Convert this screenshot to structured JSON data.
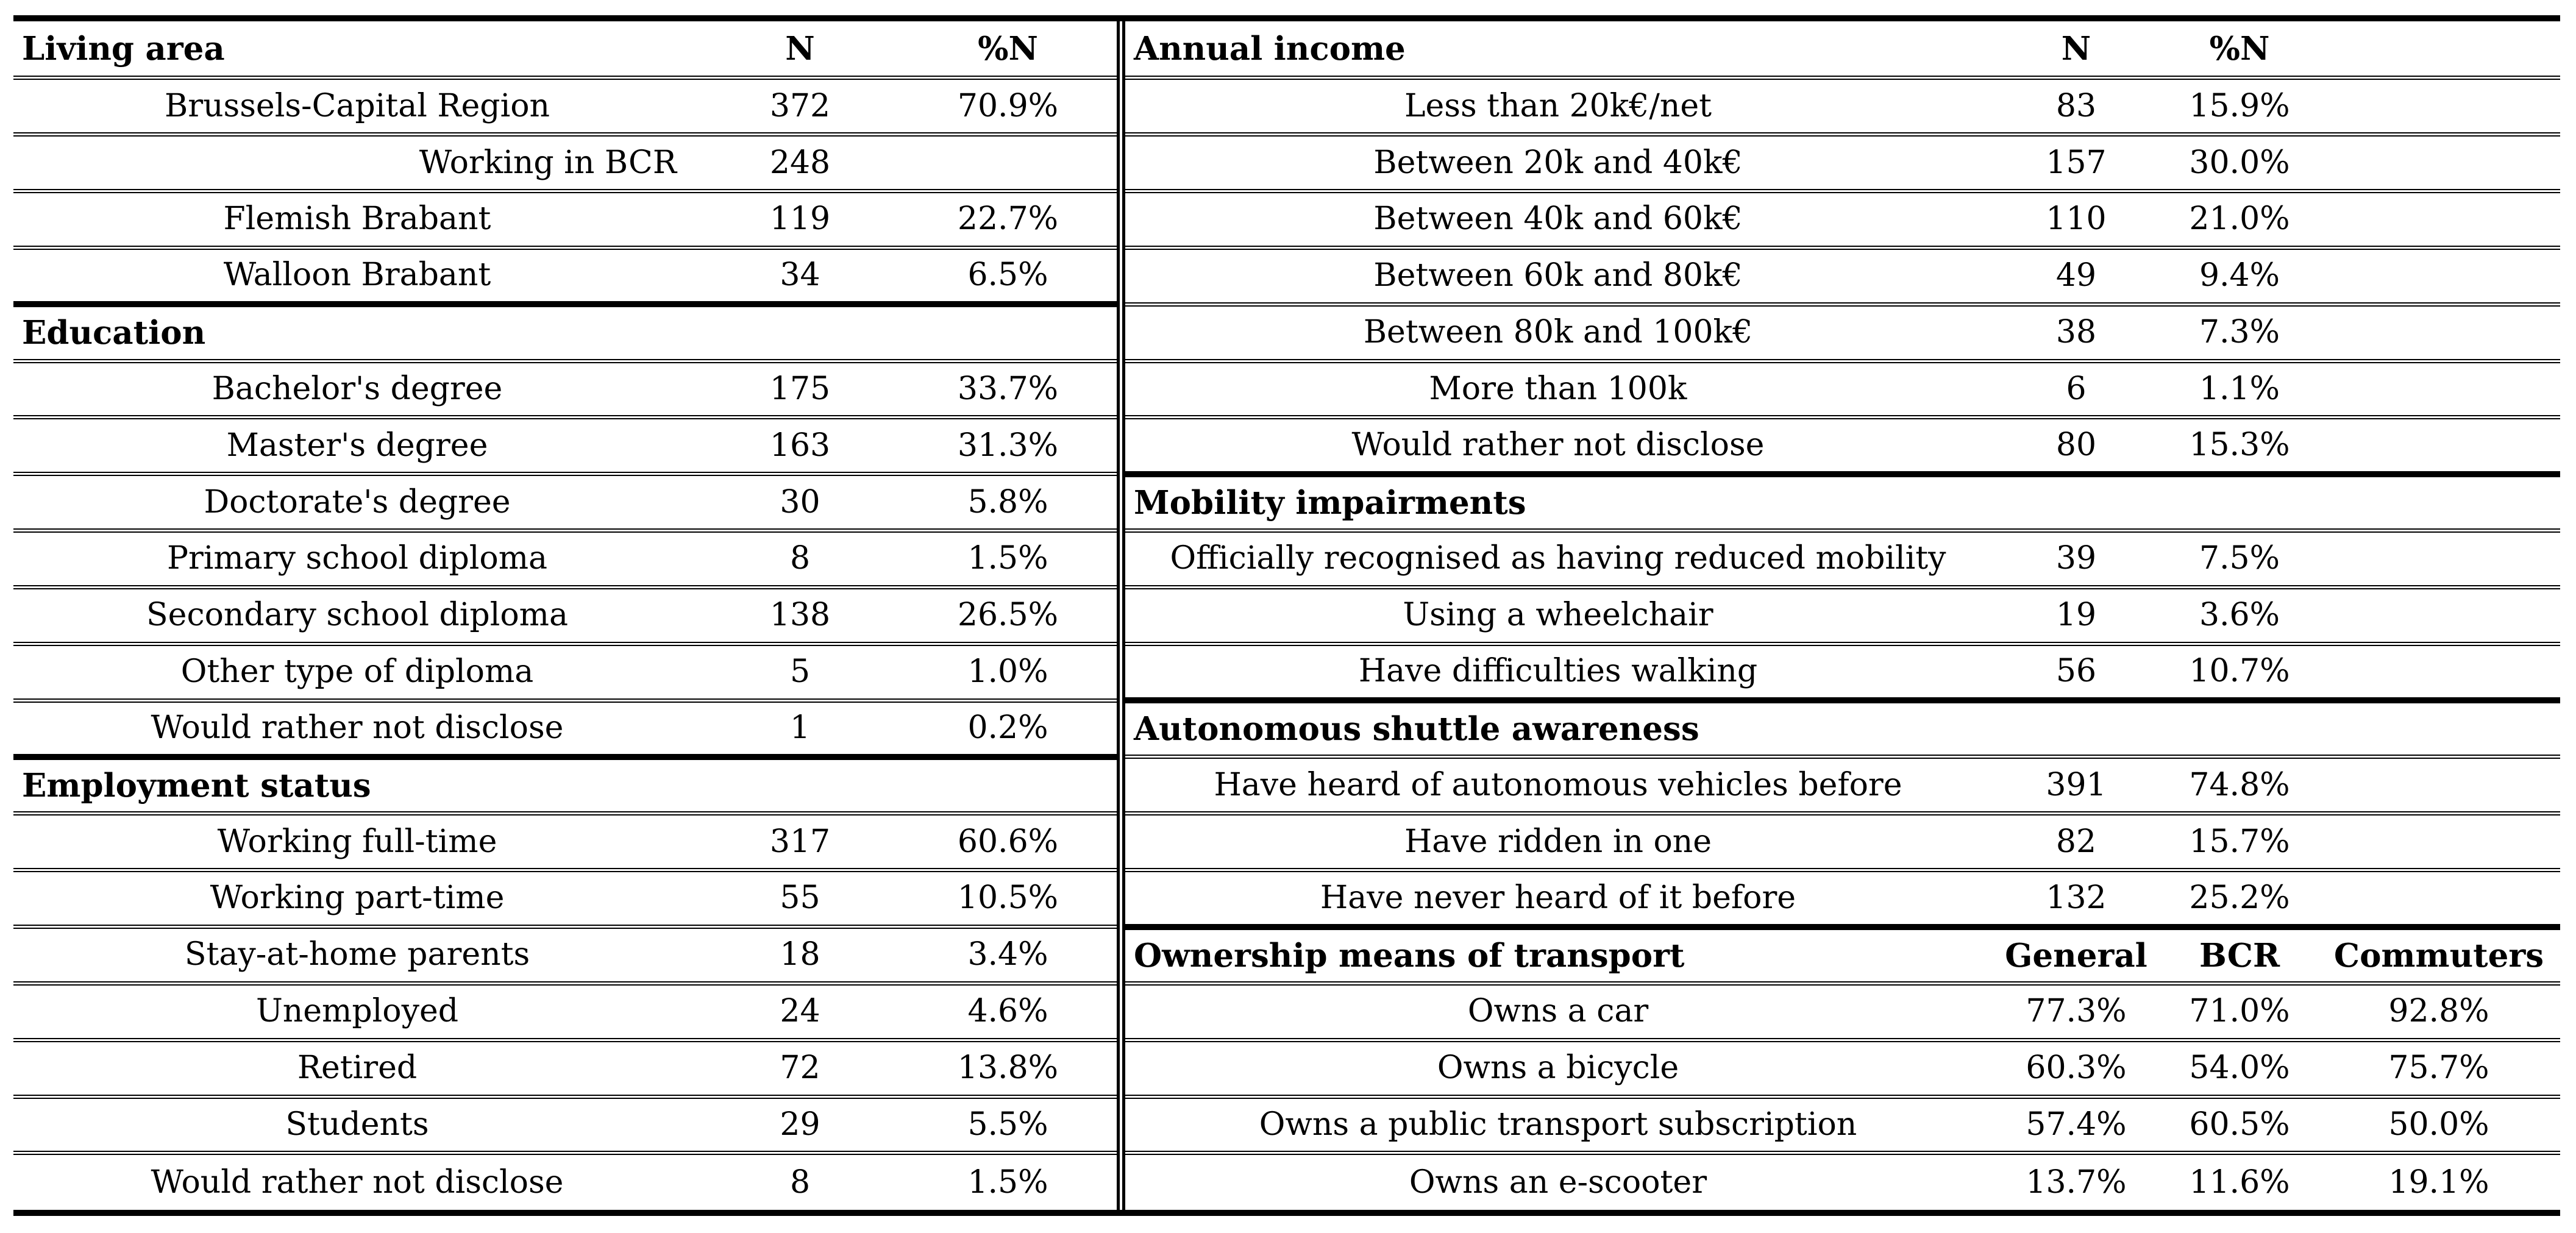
{
  "page": {
    "background": "#ffffff",
    "text_color": "#000000",
    "rule_color": "#000000"
  },
  "left_table": {
    "sections": [
      {
        "header": {
          "label": "Living area",
          "n": "N",
          "pct": "%N"
        },
        "rows": [
          {
            "label": "Brussels-Capital Region",
            "n": "372",
            "pct": "70.9%"
          },
          {
            "label": "Working in BCR",
            "n": "248",
            "pct": "",
            "align": "right"
          },
          {
            "label": "Flemish Brabant",
            "n": "119",
            "pct": "22.7%"
          },
          {
            "label": "Walloon Brabant",
            "n": "34",
            "pct": "6.5%"
          }
        ]
      },
      {
        "header": {
          "label": "Education"
        },
        "rows": [
          {
            "label": "Bachelor's degree",
            "n": "175",
            "pct": "33.7%"
          },
          {
            "label": "Master's degree",
            "n": "163",
            "pct": "31.3%"
          },
          {
            "label": "Doctorate's degree",
            "n": "30",
            "pct": "5.8%"
          },
          {
            "label": "Primary school diploma",
            "n": "8",
            "pct": "1.5%"
          },
          {
            "label": "Secondary school diploma",
            "n": "138",
            "pct": "26.5%"
          },
          {
            "label": "Other type of diploma",
            "n": "5",
            "pct": "1.0%"
          },
          {
            "label": "Would rather not disclose",
            "n": "1",
            "pct": "0.2%"
          }
        ]
      },
      {
        "header": {
          "label": "Employment status"
        },
        "rows": [
          {
            "label": "Working full-time",
            "n": "317",
            "pct": "60.6%"
          },
          {
            "label": "Working part-time",
            "n": "55",
            "pct": "10.5%"
          },
          {
            "label": "Stay-at-home parents",
            "n": "18",
            "pct": "3.4%"
          },
          {
            "label": "Unemployed",
            "n": "24",
            "pct": "4.6%"
          },
          {
            "label": "Retired",
            "n": "72",
            "pct": "13.8%"
          },
          {
            "label": "Students",
            "n": "29",
            "pct": "5.5%"
          },
          {
            "label": "Would rather not disclose",
            "n": "8",
            "pct": "1.5%"
          }
        ]
      }
    ]
  },
  "right_table": {
    "sections": [
      {
        "header": {
          "label": "Annual income",
          "n": "N",
          "pct": "%N",
          "extra": ""
        },
        "rows": [
          {
            "label": "Less than 20k€/net",
            "n": "83",
            "pct": "15.9%"
          },
          {
            "label": "Between 20k and 40k€",
            "n": "157",
            "pct": "30.0%"
          },
          {
            "label": "Between 40k and 60k€",
            "n": "110",
            "pct": "21.0%"
          },
          {
            "label": "Between 60k and 80k€",
            "n": "49",
            "pct": "9.4%"
          },
          {
            "label": "Between 80k and 100k€",
            "n": "38",
            "pct": "7.3%"
          },
          {
            "label": "More than 100k",
            "n": "6",
            "pct": "1.1%"
          },
          {
            "label": "Would rather not disclose",
            "n": "80",
            "pct": "15.3%"
          }
        ]
      },
      {
        "header": {
          "label": "Mobility impairments"
        },
        "rows": [
          {
            "label": "Officially recognised as having reduced mobility",
            "n": "39",
            "pct": "7.5%"
          },
          {
            "label": "Using a wheelchair",
            "n": "19",
            "pct": "3.6%"
          },
          {
            "label": "Have difficulties walking",
            "n": "56",
            "pct": "10.7%"
          }
        ]
      },
      {
        "header": {
          "label": "Autonomous shuttle awareness"
        },
        "rows": [
          {
            "label": "Have heard of autonomous vehicles before",
            "n": "391",
            "pct": "74.8%"
          },
          {
            "label": "Have ridden in one",
            "n": "82",
            "pct": "15.7%"
          },
          {
            "label": "Have never heard of it before",
            "n": "132",
            "pct": "25.2%"
          }
        ]
      },
      {
        "header": {
          "label": "Ownership means of transport",
          "n": "General",
          "pct": "BCR",
          "extra": "Commuters"
        },
        "rows": [
          {
            "label": "Owns a car",
            "n": "77.3%",
            "pct": "71.0%",
            "extra": "92.8%"
          },
          {
            "label": "Owns a bicycle",
            "n": "60.3%",
            "pct": "54.0%",
            "extra": "75.7%"
          },
          {
            "label": "Owns a public transport subscription",
            "n": "57.4%",
            "pct": "60.5%",
            "extra": "50.0%"
          },
          {
            "label": "Owns an e-scooter",
            "n": "13.7%",
            "pct": "11.6%",
            "extra": "19.1%"
          }
        ]
      }
    ]
  }
}
